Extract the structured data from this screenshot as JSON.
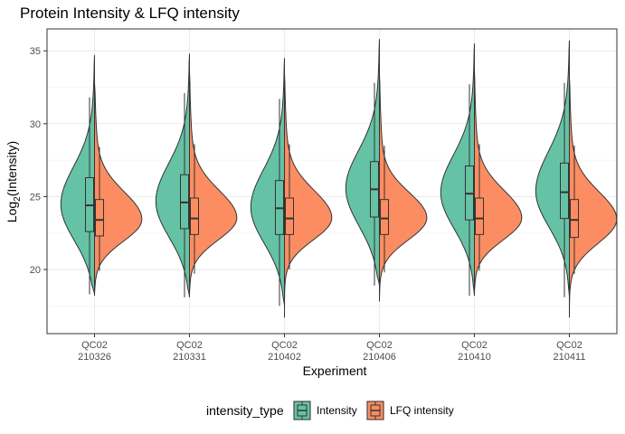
{
  "chart_data": {
    "type": "split-violin",
    "title": "Protein Intensity & LFQ intensity",
    "xlabel": "Experiment",
    "ylabel_base": "Log",
    "ylabel_sub": "2",
    "ylabel_rest": "(Intensity)",
    "ylim": [
      15.6,
      36.5
    ],
    "yticks": [
      20,
      25,
      30,
      35
    ],
    "grid": true,
    "legend_position": "bottom",
    "legend_title": "intensity_type",
    "series": [
      {
        "name": "Intensity",
        "color": "#66c2a5"
      },
      {
        "name": "LFQ intensity",
        "color": "#fc8d62"
      }
    ],
    "categories": [
      {
        "label_line1": "QC02",
        "label_line2": "210326",
        "intensity": {
          "min": 18.3,
          "q1": 22.6,
          "median": 24.4,
          "q3": 26.3,
          "max": 34.7,
          "box_whisker_low": 18.3,
          "box_whisker_high": 31.8
        },
        "lfq": {
          "min": 18.2,
          "q1": 22.3,
          "median": 23.4,
          "q3": 24.8,
          "max": 32.8,
          "box_whisker_low": 19.9,
          "box_whisker_high": 28.4
        }
      },
      {
        "label_line1": "QC02",
        "label_line2": "210331",
        "intensity": {
          "min": 18.1,
          "q1": 22.8,
          "median": 24.6,
          "q3": 26.5,
          "max": 34.8,
          "box_whisker_low": 18.1,
          "box_whisker_high": 32.1
        },
        "lfq": {
          "min": 18.2,
          "q1": 22.4,
          "median": 23.5,
          "q3": 24.9,
          "max": 33.6,
          "box_whisker_low": 19.7,
          "box_whisker_high": 28.6
        }
      },
      {
        "label_line1": "QC02",
        "label_line2": "210402",
        "intensity": {
          "min": 17.5,
          "q1": 22.4,
          "median": 24.2,
          "q3": 26.1,
          "max": 34.5,
          "box_whisker_low": 17.5,
          "box_whisker_high": 31.7
        },
        "lfq": {
          "min": 16.7,
          "q1": 22.4,
          "median": 23.5,
          "q3": 24.9,
          "max": 33.5,
          "box_whisker_low": 20.0,
          "box_whisker_high": 28.6
        }
      },
      {
        "label_line1": "QC02",
        "label_line2": "210406",
        "intensity": {
          "min": 18.9,
          "q1": 23.6,
          "median": 25.5,
          "q3": 27.4,
          "max": 35.8,
          "box_whisker_low": 18.9,
          "box_whisker_high": 32.8
        },
        "lfq": {
          "min": 17.8,
          "q1": 22.4,
          "median": 23.5,
          "q3": 24.8,
          "max": 33.4,
          "box_whisker_low": 19.8,
          "box_whisker_high": 28.5
        }
      },
      {
        "label_line1": "QC02",
        "label_line2": "210410",
        "intensity": {
          "min": 18.2,
          "q1": 23.4,
          "median": 25.2,
          "q3": 27.1,
          "max": 35.5,
          "box_whisker_low": 18.2,
          "box_whisker_high": 32.7
        },
        "lfq": {
          "min": 18.3,
          "q1": 22.4,
          "median": 23.5,
          "q3": 24.9,
          "max": 33.7,
          "box_whisker_low": 19.9,
          "box_whisker_high": 28.6
        }
      },
      {
        "label_line1": "QC02",
        "label_line2": "210411",
        "intensity": {
          "min": 18.1,
          "q1": 23.5,
          "median": 25.3,
          "q3": 27.3,
          "max": 35.7,
          "box_whisker_low": 18.1,
          "box_whisker_high": 32.8
        },
        "lfq": {
          "min": 16.7,
          "q1": 22.2,
          "median": 23.4,
          "q3": 24.8,
          "max": 33.2,
          "box_whisker_low": 19.7,
          "box_whisker_high": 28.5
        }
      }
    ]
  }
}
